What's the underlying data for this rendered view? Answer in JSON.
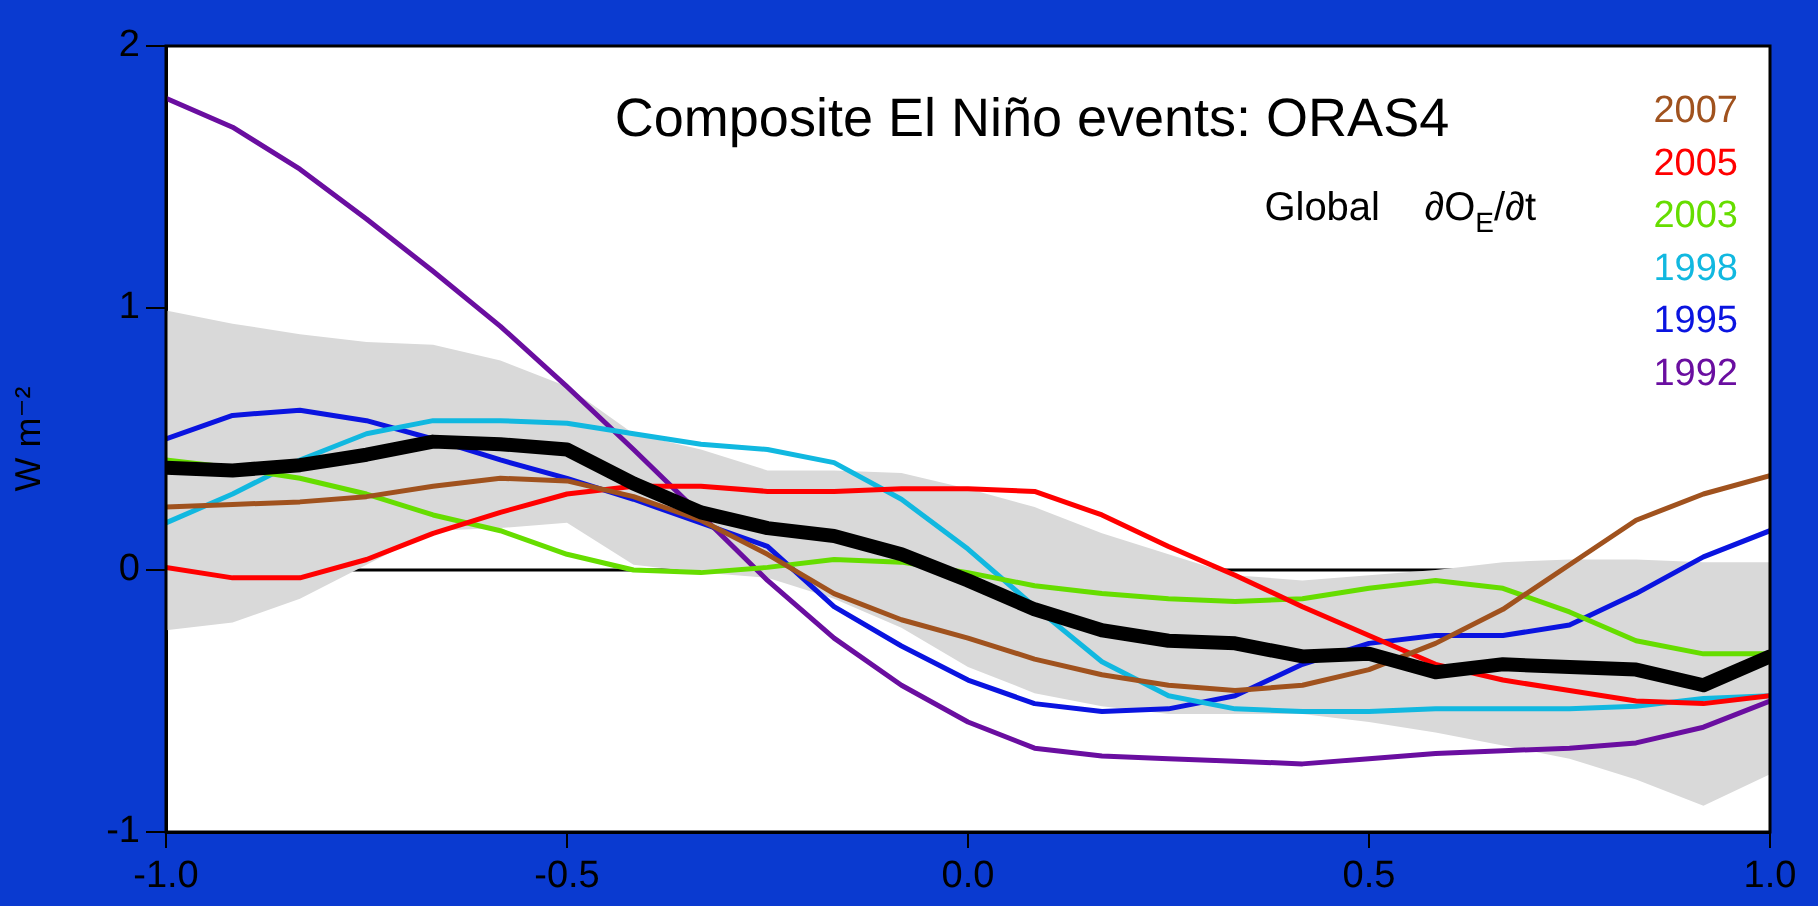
{
  "chart_data": {
    "type": "line",
    "title": "Composite El Niño events: ORAS4",
    "subtitle": "Global    ∂O$_{E}$/∂t",
    "ylabel": "W m⁻²",
    "x": [
      -1,
      -0.917,
      -0.833,
      -0.75,
      -0.667,
      -0.583,
      -0.5,
      -0.417,
      -0.333,
      -0.25,
      -0.167,
      -0.083,
      0,
      0.083,
      0.167,
      0.25,
      0.333,
      0.417,
      0.5,
      0.583,
      0.667,
      0.75,
      0.833,
      0.917,
      1
    ],
    "series": [
      {
        "name": "2007",
        "color": "#a0521e",
        "values": [
          0.24,
          0.25,
          0.26,
          0.28,
          0.32,
          0.35,
          0.34,
          0.28,
          0.19,
          0.06,
          -0.09,
          -0.19,
          -0.26,
          -0.34,
          -0.4,
          -0.44,
          -0.46,
          -0.44,
          -0.38,
          -0.28,
          -0.15,
          0.02,
          0.19,
          0.29,
          0.36
        ]
      },
      {
        "name": "2005",
        "color": "#ff0000",
        "values": [
          0.01,
          -0.03,
          -0.03,
          0.04,
          0.14,
          0.22,
          0.29,
          0.32,
          0.32,
          0.3,
          0.3,
          0.31,
          0.31,
          0.3,
          0.21,
          0.09,
          -0.02,
          -0.14,
          -0.25,
          -0.36,
          -0.42,
          -0.46,
          -0.5,
          -0.51,
          -0.48
        ]
      },
      {
        "name": "2003",
        "color": "#66dd00",
        "values": [
          0.42,
          0.39,
          0.35,
          0.29,
          0.21,
          0.15,
          0.06,
          0.0,
          -0.01,
          0.01,
          0.04,
          0.03,
          -0.01,
          -0.06,
          -0.09,
          -0.11,
          -0.12,
          -0.11,
          -0.07,
          -0.04,
          -0.07,
          -0.16,
          -0.27,
          -0.32,
          -0.32
        ]
      },
      {
        "name": "1998",
        "color": "#11b8e0",
        "values": [
          0.18,
          0.29,
          0.42,
          0.52,
          0.57,
          0.57,
          0.56,
          0.52,
          0.48,
          0.46,
          0.41,
          0.27,
          0.08,
          -0.14,
          -0.35,
          -0.48,
          -0.53,
          -0.54,
          -0.54,
          -0.53,
          -0.53,
          -0.53,
          -0.52,
          -0.49,
          -0.48
        ]
      },
      {
        "name": "1995",
        "color": "#0a14e0",
        "values": [
          0.5,
          0.59,
          0.61,
          0.57,
          0.5,
          0.42,
          0.35,
          0.27,
          null,
          0.09,
          -0.14,
          -0.29,
          -0.42,
          -0.51,
          -0.54,
          -0.53,
          -0.48,
          -0.36,
          -0.28,
          -0.25,
          -0.25,
          -0.21,
          -0.09,
          0.05,
          0.15
        ]
      },
      {
        "name": "1992",
        "color": "#6a0ea0",
        "values": [
          1.8,
          1.69,
          1.53,
          1.34,
          1.14,
          0.93,
          0.7,
          0.46,
          0.21,
          -0.04,
          -0.26,
          -0.44,
          -0.58,
          -0.68,
          -0.71,
          -0.72,
          -0.73,
          -0.74,
          -0.72,
          -0.7,
          -0.69,
          -0.68,
          -0.66,
          -0.6,
          -0.5
        ]
      },
      {
        "color": "#000000",
        "values": [
          0.39,
          0.38,
          0.4,
          0.44,
          0.49,
          0.48,
          0.46,
          0.33,
          0.22,
          0.16,
          0.13,
          0.06,
          -0.04,
          -0.15,
          -0.23,
          -0.27,
          -0.28,
          -0.33,
          -0.32,
          -0.39,
          -0.36,
          -0.37,
          -0.38,
          -0.44,
          -0.33
        ],
        "lower": [
          -0.23,
          -0.2,
          -0.11,
          0.02,
          0.15,
          0.16,
          0.18,
          0.02,
          -0.01,
          -0.03,
          -0.11,
          -0.22,
          -0.37,
          -0.47,
          -0.52,
          -0.55,
          -0.55,
          -0.55,
          -0.58,
          -0.62,
          -0.67,
          -0.72,
          -0.8,
          -0.9,
          -0.78
        ],
        "upper": [
          0.99,
          0.94,
          0.9,
          0.87,
          0.86,
          0.8,
          0.7,
          0.52,
          0.46,
          0.38,
          0.38,
          0.37,
          0.31,
          0.24,
          0.14,
          0.06,
          -0.02,
          -0.04,
          -0.02,
          0.0,
          0.03,
          0.04,
          0.04,
          0.03,
          0.03
        ]
      }
    ],
    "xlim": [
      -1,
      1
    ],
    "xticks": [
      {
        "value": -1,
        "label": "-1.0"
      },
      {
        "value": -0.5,
        "label": "-0.5"
      },
      {
        "value": 0,
        "label": "0.0"
      },
      {
        "value": 0.5,
        "label": "0.5"
      },
      {
        "value": 1,
        "label": "1.0"
      }
    ],
    "ylim": [
      -1,
      2
    ],
    "yticks": [
      -1,
      0,
      1,
      2
    ],
    "ref_lines": [
      {
        "axis": "y",
        "value": 0,
        "color": "#000000"
      }
    ],
    "grid": false,
    "legend": "top right",
    "marker": "none",
    "line_style": "solid"
  }
}
